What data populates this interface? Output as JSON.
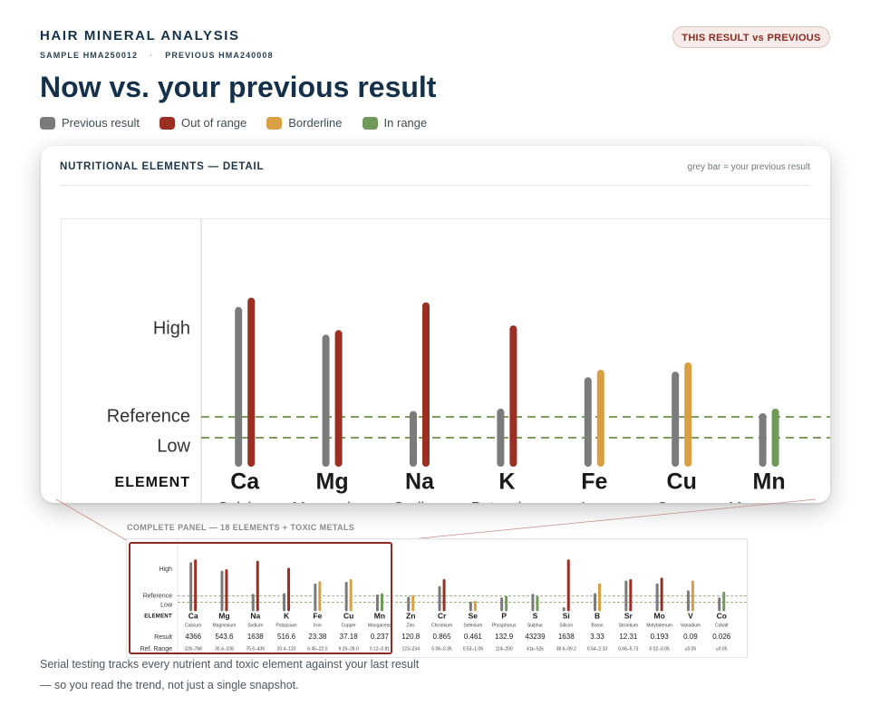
{
  "header": {
    "brand": "HAIR MINERAL ANALYSIS",
    "sample_label": "SAMPLE HMA250012",
    "previous_label": "PREVIOUS HMA240008",
    "separator": "·",
    "badge": "THIS RESULT vs PREVIOUS",
    "title": "Now vs. your previous result"
  },
  "legend": [
    {
      "label": "Previous result",
      "color": "#7b7b7b"
    },
    {
      "label": "Out of range",
      "color": "#9b2f24"
    },
    {
      "label": "Borderline",
      "color": "#d9a043"
    },
    {
      "label": "In range",
      "color": "#6f9a5a"
    }
  ],
  "card": {
    "title": "NUTRITIONAL ELEMENTS — DETAIL",
    "note": "grey bar = your previous result"
  },
  "thumbnail": {
    "caption": "COMPLETE PANEL — 18 ELEMENTS + TOXIC METALS"
  },
  "footer": {
    "line1": "Serial testing tracks every nutrient and toxic element against your last result",
    "line2": "— so you read the trend, not just a single snapshot."
  },
  "colors": {
    "previous": "#7b7b7b",
    "out_of_range": "#9b2f24",
    "borderline": "#d9a043",
    "in_range": "#6f9a5a",
    "reference_line": "#7d9e5f"
  },
  "chart_data": [
    {
      "type": "bar",
      "title": "NUTRITIONAL ELEMENTS — DETAIL",
      "y_levels": [
        "High",
        "Reference",
        "Low"
      ],
      "row_labels": {
        "element": "ELEMENT",
        "result": "Result",
        "range": "Ref. Range"
      },
      "note": "grey bar = your previous result",
      "y_scale": "relative level: 0 = base, 1 = top of reference band, 2 = High",
      "elements": [
        {
          "symbol": "Ca",
          "name": "Calcium",
          "result": "4366",
          "ref_range": "328–788",
          "previous_level": 3.3,
          "current_level": 3.5,
          "status": "out_of_range"
        },
        {
          "symbol": "Mg",
          "name": "Magnesium",
          "result": "543.6",
          "ref_range": "30.4–108",
          "previous_level": 2.7,
          "current_level": 2.8,
          "status": "out_of_range"
        },
        {
          "symbol": "Na",
          "name": "Sodium",
          "result": "1638",
          "ref_range": "75.6–435",
          "previous_level": 1.05,
          "current_level": 3.4,
          "status": "out_of_range"
        },
        {
          "symbol": "K",
          "name": "Potassium",
          "result": "516.6",
          "ref_range": "20.4–132",
          "previous_level": 1.1,
          "current_level": 2.9,
          "status": "out_of_range"
        },
        {
          "symbol": "Fe",
          "name": "Iron",
          "result": "23.38",
          "ref_range": "6.45–22.0",
          "previous_level": 1.78,
          "current_level": 1.94,
          "status": "borderline"
        },
        {
          "symbol": "Cu",
          "name": "Copper",
          "result": "37.18",
          "ref_range": "9.26–28.0",
          "previous_level": 1.9,
          "current_level": 2.1,
          "status": "borderline"
        },
        {
          "symbol": "Mn",
          "name": "Manganese",
          "result": "0.237",
          "ref_range": "0.12–0.81",
          "previous_level": 1.0,
          "current_level": 1.1,
          "status": "in_range"
        }
      ]
    },
    {
      "type": "bar",
      "title": "COMPLETE PANEL — 18 ELEMENTS + TOXIC METALS",
      "y_levels": [
        "High",
        "Reference",
        "Low"
      ],
      "row_labels": {
        "element": "ELEMENT",
        "result": "Result",
        "range": "Ref. Range"
      },
      "elements": [
        {
          "symbol": "Ca",
          "name": "Calcium",
          "result": "4366",
          "ref_range": "328–788",
          "previous_level": 3.3,
          "current_level": 3.5,
          "status": "out_of_range"
        },
        {
          "symbol": "Mg",
          "name": "Magnesium",
          "result": "543.6",
          "ref_range": "30.4–108",
          "previous_level": 2.7,
          "current_level": 2.8,
          "status": "out_of_range"
        },
        {
          "symbol": "Na",
          "name": "Sodium",
          "result": "1638",
          "ref_range": "75.6–435",
          "previous_level": 1.05,
          "current_level": 3.4,
          "status": "out_of_range"
        },
        {
          "symbol": "K",
          "name": "Potassium",
          "result": "516.6",
          "ref_range": "20.4–132",
          "previous_level": 1.1,
          "current_level": 2.9,
          "status": "out_of_range"
        },
        {
          "symbol": "Fe",
          "name": "Iron",
          "result": "23.38",
          "ref_range": "6.45–22.0",
          "previous_level": 1.78,
          "current_level": 1.94,
          "status": "borderline"
        },
        {
          "symbol": "Cu",
          "name": "Copper",
          "result": "37.18",
          "ref_range": "9.26–28.0",
          "previous_level": 1.9,
          "current_level": 2.1,
          "status": "borderline"
        },
        {
          "symbol": "Mn",
          "name": "Manganese",
          "result": "0.237",
          "ref_range": "0.12–0.81",
          "previous_level": 1.0,
          "current_level": 1.1,
          "status": "in_range"
        },
        {
          "symbol": "Zn",
          "name": "Zinc",
          "result": "120.8",
          "ref_range": "123–234",
          "previous_level": 0.85,
          "current_level": 0.95,
          "status": "borderline"
        },
        {
          "symbol": "Cr",
          "name": "Chromium",
          "result": "0.865",
          "ref_range": "0.06–0.35",
          "previous_level": 1.6,
          "current_level": 2.1,
          "status": "out_of_range"
        },
        {
          "symbol": "Se",
          "name": "Selenium",
          "result": "0.461",
          "ref_range": "0.53–1.09",
          "previous_level": 0.5,
          "current_level": 0.55,
          "status": "borderline"
        },
        {
          "symbol": "P",
          "name": "Phosphorus",
          "result": "132.9",
          "ref_range": "114–200",
          "previous_level": 0.8,
          "current_level": 0.9,
          "status": "in_range"
        },
        {
          "symbol": "S",
          "name": "Sulphur",
          "result": "43239",
          "ref_range": "41k–52k",
          "previous_level": 1.05,
          "current_level": 0.9,
          "status": "in_range"
        },
        {
          "symbol": "Si",
          "name": "Silicon",
          "result": "1638",
          "ref_range": "38.6–99.2",
          "previous_level": 0.1,
          "current_level": 3.5,
          "status": "out_of_range"
        },
        {
          "symbol": "B",
          "name": "Boron",
          "result": "3.33",
          "ref_range": "0.54–2.33",
          "previous_level": 1.1,
          "current_level": 1.8,
          "status": "borderline"
        },
        {
          "symbol": "Sr",
          "name": "Strontium",
          "result": "12.31",
          "ref_range": "0.66–5.73",
          "previous_level": 2.0,
          "current_level": 2.1,
          "status": "out_of_range"
        },
        {
          "symbol": "Mo",
          "name": "Molybdenum",
          "result": "0.193",
          "ref_range": "0.02–0.05",
          "previous_level": 1.8,
          "current_level": 2.2,
          "status": "out_of_range"
        },
        {
          "symbol": "V",
          "name": "Vanadium",
          "result": "0.09",
          "ref_range": "≤0.05",
          "previous_level": 1.3,
          "current_level": 2.0,
          "status": "borderline"
        },
        {
          "symbol": "Co",
          "name": "Cobalt",
          "result": "0.026",
          "ref_range": "≤0.05",
          "previous_level": 0.8,
          "current_level": 1.2,
          "status": "in_range"
        }
      ]
    }
  ]
}
